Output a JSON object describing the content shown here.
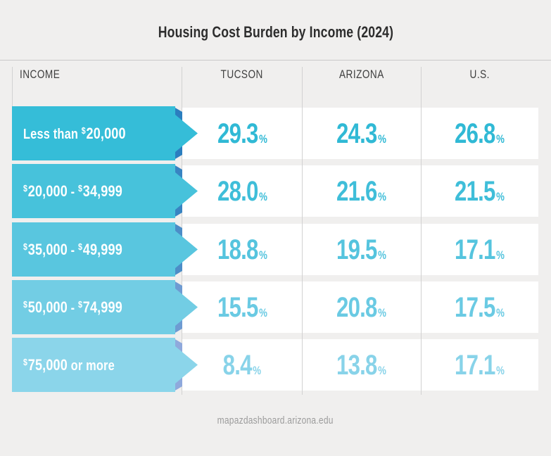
{
  "title": "Housing Cost Burden by Income (2024)",
  "source": "mapazdashboard.arizona.edu",
  "columns": [
    "INCOME",
    "TUCSON",
    "ARIZONA",
    "U.S."
  ],
  "unit_symbol": "%",
  "dollar_sign": "$",
  "chart_data": {
    "type": "table",
    "title": "Housing Cost Burden by Income (2024)",
    "categories": [
      "Less than $20,000",
      "$20,000 - $34,999",
      "$35,000 - $49,999",
      "$50,000 - $74,999",
      "$75,000 or more"
    ],
    "series": [
      {
        "name": "Tucson",
        "values": [
          29.3,
          28.0,
          18.8,
          15.5,
          8.4
        ]
      },
      {
        "name": "Arizona",
        "values": [
          24.3,
          21.6,
          19.5,
          20.8,
          13.8
        ]
      },
      {
        "name": "U.S.",
        "values": [
          26.8,
          21.5,
          17.1,
          17.5,
          17.1
        ]
      }
    ],
    "unit": "%",
    "source": "mapazdashboard.arizona.edu",
    "legend_position": "column-headers",
    "grid": "column-dividers"
  },
  "rows": [
    {
      "label_parts": [
        {
          "type": "text",
          "value": "Less than "
        },
        {
          "type": "money",
          "value": "20,000"
        }
      ],
      "values": [
        "29.3",
        "24.3",
        "26.8"
      ],
      "colors": {
        "body": "#35BDD8",
        "fold": "#2B7EBF",
        "value": "#30B9D5"
      }
    },
    {
      "label_parts": [
        {
          "type": "money",
          "value": "20,000"
        },
        {
          "type": "text",
          "value": " - "
        },
        {
          "type": "money",
          "value": "34,999"
        }
      ],
      "values": [
        "28.0",
        "21.6",
        "21.5"
      ],
      "colors": {
        "body": "#47C2DB",
        "fold": "#3884C2",
        "value": "#3FBED9"
      }
    },
    {
      "label_parts": [
        {
          "type": "money",
          "value": "35,000"
        },
        {
          "type": "text",
          "value": " - "
        },
        {
          "type": "money",
          "value": "49,999"
        }
      ],
      "values": [
        "18.8",
        "19.5",
        "17.1"
      ],
      "colors": {
        "body": "#59C6DF",
        "fold": "#4C8DC7",
        "value": "#55C4DE"
      }
    },
    {
      "label_parts": [
        {
          "type": "money",
          "value": "50,000"
        },
        {
          "type": "text",
          "value": " - "
        },
        {
          "type": "money",
          "value": "74,999"
        }
      ],
      "values": [
        "15.5",
        "20.8",
        "17.5"
      ],
      "colors": {
        "body": "#72CDE4",
        "fold": "#6E9BD2",
        "value": "#6ACAE3"
      }
    },
    {
      "label_parts": [
        {
          "type": "money",
          "value": "75,000"
        },
        {
          "type": "text",
          "value": " or more"
        }
      ],
      "values": [
        "8.4",
        "13.8",
        "17.1"
      ],
      "colors": {
        "body": "#8BD5EA",
        "fold": "#8FA9DC",
        "value": "#88D3E9"
      }
    }
  ],
  "column_keys": [
    "tucson",
    "arizona",
    "us"
  ]
}
